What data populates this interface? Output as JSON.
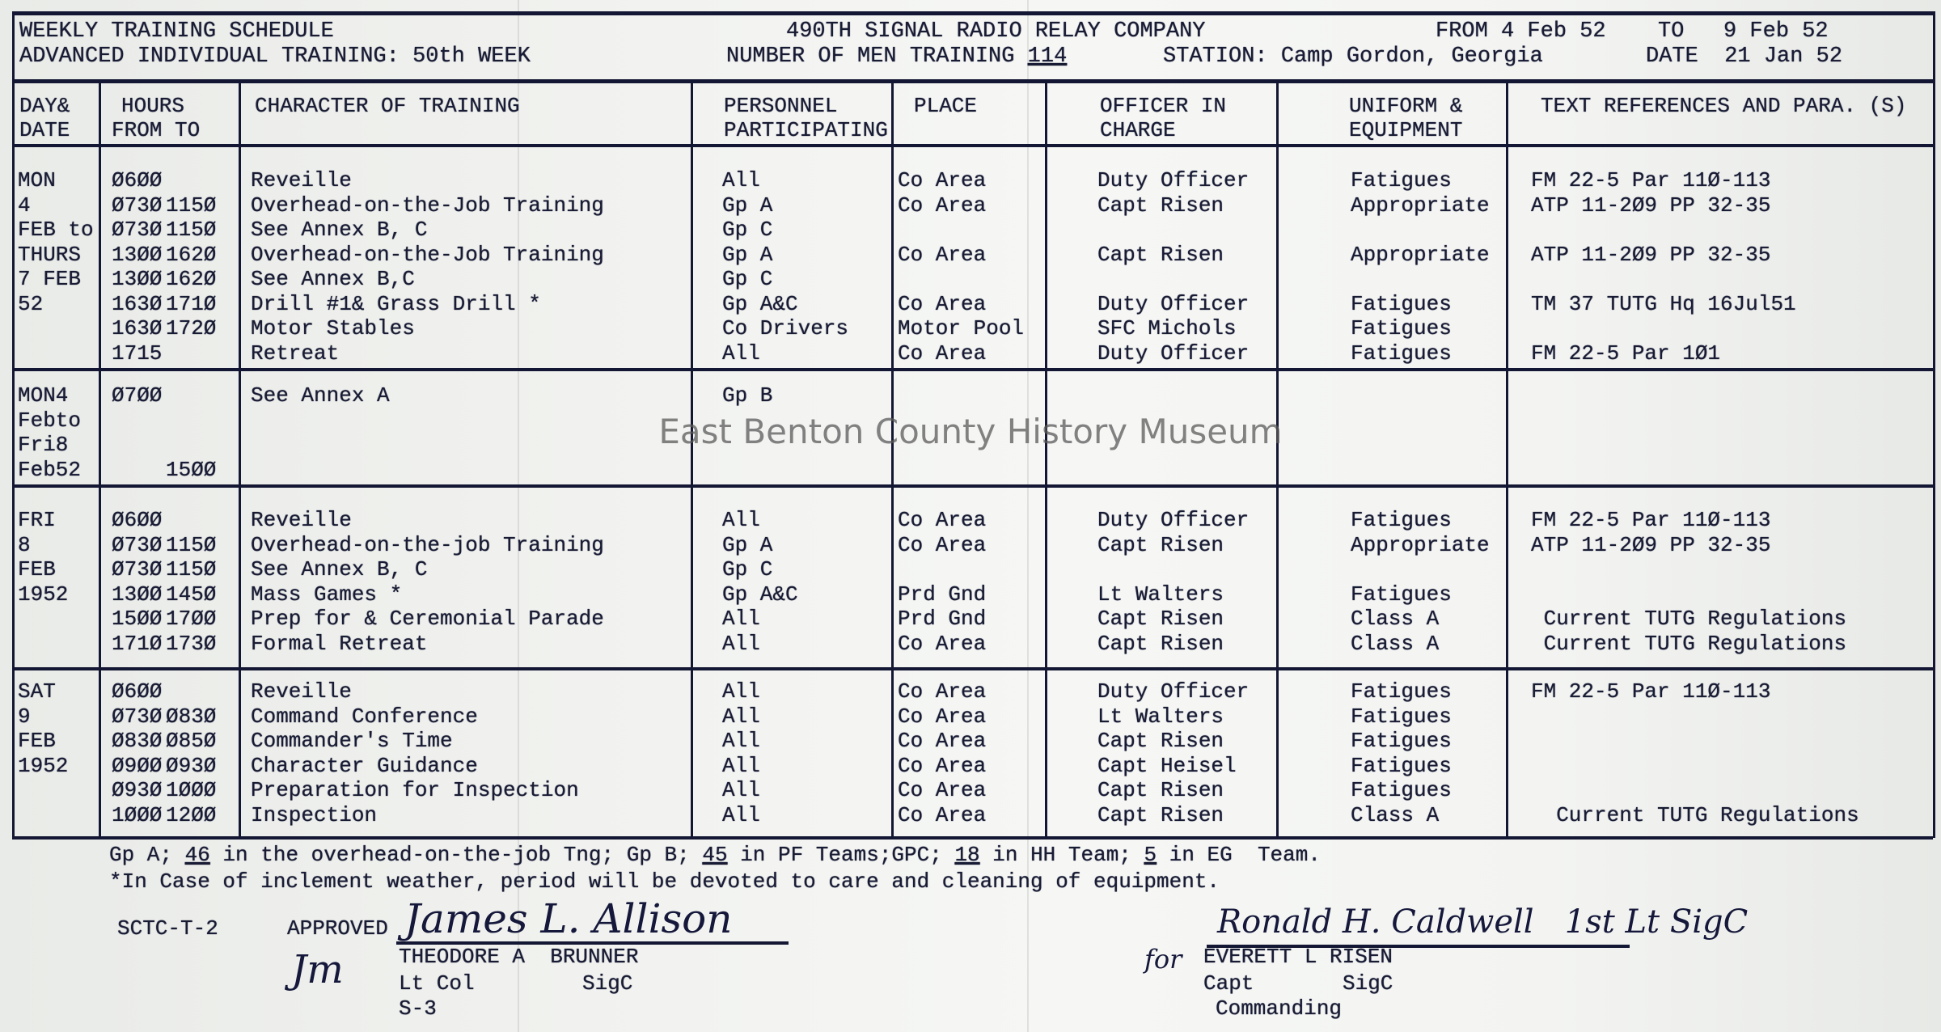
{
  "header": {
    "title": "WEEKLY TRAINING SCHEDULE",
    "subtitle": "ADVANCED INDIVIDUAL TRAINING: 50th WEEK",
    "unit": "490TH SIGNAL RADIO RELAY COMPANY",
    "men_training_label": "NUMBER OF MEN TRAINING",
    "men_training_value": "114",
    "station": "STATION: Camp Gordon, Georgia",
    "from_label": "FROM",
    "from_value": "4 Feb 52",
    "to_label": "TO",
    "to_value": "9 Feb 52",
    "date_label": "DATE",
    "date_value": "21 Jan 52"
  },
  "columns": {
    "day": [
      "DAY&",
      "DATE"
    ],
    "hours": [
      "HOURS",
      "FROM TO"
    ],
    "character": "CHARACTER OF TRAINING",
    "personnel": [
      "PERSONNEL",
      "PARTICIPATING"
    ],
    "place": "PLACE",
    "officer": [
      "OFFICER IN",
      "CHARGE"
    ],
    "uniform": [
      "UNIFORM &",
      "EQUIPMENT"
    ],
    "reference": "TEXT REFERENCES AND PARA. (S)"
  },
  "sections": [
    {
      "day": [
        "MON",
        "4",
        "FEB to",
        "THURS",
        "7 FEB",
        "52"
      ],
      "rows": [
        {
          "from": "Ø6ØØ",
          "to": "",
          "character": "Reveille",
          "personnel": "All",
          "place": "Co Area",
          "officer": "Duty Officer",
          "uniform": "Fatigues",
          "reference": "FM 22-5 Par 11Ø-113"
        },
        {
          "from": "Ø73Ø",
          "to": "115Ø",
          "character": "Overhead-on-the-Job Training",
          "personnel": "Gp A",
          "place": "Co Area",
          "officer": "Capt Risen",
          "uniform": "Appropriate",
          "reference": "ATP 11-2Ø9 PP 32-35"
        },
        {
          "from": "Ø73Ø",
          "to": "115Ø",
          "character": "See Annex B, C",
          "personnel": "Gp C",
          "place": "",
          "officer": "",
          "uniform": "",
          "reference": ""
        },
        {
          "from": "13ØØ",
          "to": "162Ø",
          "character": "Overhead-on-the-Job Training",
          "personnel": "Gp A",
          "place": "Co Area",
          "officer": "Capt Risen",
          "uniform": "Appropriate",
          "reference": "ATP 11-2Ø9 PP 32-35"
        },
        {
          "from": "13ØØ",
          "to": "162Ø",
          "character": "See Annex B,C",
          "personnel": "Gp C",
          "place": "",
          "officer": "",
          "uniform": "",
          "reference": ""
        },
        {
          "from": "163Ø",
          "to": "171Ø",
          "character": "Drill #1& Grass Drill *",
          "personnel": "Gp A&C",
          "place": "Co Area",
          "officer": "Duty Officer",
          "uniform": "Fatigues",
          "reference": "TM 37 TUTG Hq 16Jul51"
        },
        {
          "from": "163Ø",
          "to": "172Ø",
          "character": "Motor Stables",
          "personnel": "Co Drivers",
          "place": "Motor Pool",
          "officer": "SFC Michols",
          "uniform": "Fatigues",
          "reference": ""
        },
        {
          "from": "1715",
          "to": "",
          "character": "Retreat",
          "personnel": "All",
          "place": "Co Area",
          "officer": "Duty Officer",
          "uniform": "Fatigues",
          "reference": "FM 22-5 Par 1Ø1"
        }
      ]
    },
    {
      "day": [
        "MON4",
        "Febto",
        "Fri8",
        "Feb52"
      ],
      "rows": [
        {
          "from": "Ø7ØØ",
          "to": "",
          "character": "See Annex A",
          "personnel": "Gp B",
          "place": "",
          "officer": "",
          "uniform": "",
          "reference": ""
        },
        {
          "from": "",
          "to": "",
          "character": "",
          "personnel": "",
          "place": "",
          "officer": "",
          "uniform": "",
          "reference": ""
        },
        {
          "from": "",
          "to": "",
          "character": "",
          "personnel": "",
          "place": "",
          "officer": "",
          "uniform": "",
          "reference": ""
        },
        {
          "from": "",
          "to": "15ØØ",
          "character": "",
          "personnel": "",
          "place": "",
          "officer": "",
          "uniform": "",
          "reference": ""
        }
      ]
    },
    {
      "day": [
        "FRI",
        "8",
        "FEB",
        "1952"
      ],
      "rows": [
        {
          "from": "Ø6ØØ",
          "to": "",
          "character": "Reveille",
          "personnel": "All",
          "place": "Co Area",
          "officer": "Duty Officer",
          "uniform": "Fatigues",
          "reference": "FM 22-5 Par 11Ø-113"
        },
        {
          "from": "Ø73Ø",
          "to": "115Ø",
          "character": "Overhead-on-the-job Training",
          "personnel": "Gp A",
          "place": "Co Area",
          "officer": "Capt Risen",
          "uniform": "Appropriate",
          "reference": "ATP 11-2Ø9 PP 32-35"
        },
        {
          "from": "Ø73Ø",
          "to": "115Ø",
          "character": "See Annex B, C",
          "personnel": "Gp C",
          "place": "",
          "officer": "",
          "uniform": "",
          "reference": ""
        },
        {
          "from": "13ØØ",
          "to": "145Ø",
          "character": "Mass Games *",
          "personnel": "Gp A&C",
          "place": "Prd Gnd",
          "officer": "Lt Walters",
          "uniform": "Fatigues",
          "reference": ""
        },
        {
          "from": "15ØØ",
          "to": "17ØØ",
          "character": "Prep for & Ceremonial Parade",
          "personnel": "All",
          "place": "Prd Gnd",
          "officer": "Capt Risen",
          "uniform": "Class A",
          "reference": " Current TUTG Regulations"
        },
        {
          "from": "171Ø",
          "to": "173Ø",
          "character": "Formal Retreat",
          "personnel": "All",
          "place": "Co Area",
          "officer": "Capt Risen",
          "uniform": "Class A",
          "reference": " Current TUTG Regulations"
        }
      ]
    },
    {
      "day": [
        "SAT",
        "9",
        "FEB",
        "1952"
      ],
      "rows": [
        {
          "from": "Ø6ØØ",
          "to": "",
          "character": "Reveille",
          "personnel": "All",
          "place": "Co Area",
          "officer": "Duty Officer",
          "uniform": "Fatigues",
          "reference": "FM 22-5 Par 11Ø-113"
        },
        {
          "from": "Ø73Ø",
          "to": "Ø83Ø",
          "character": "Command Conference",
          "personnel": "All",
          "place": "Co Area",
          "officer": "Lt Walters",
          "uniform": "Fatigues",
          "reference": ""
        },
        {
          "from": "Ø83Ø",
          "to": "Ø85Ø",
          "character": "Commander's Time",
          "personnel": "All",
          "place": "Co Area",
          "officer": "Capt Risen",
          "uniform": "Fatigues",
          "reference": ""
        },
        {
          "from": "Ø9ØØ",
          "to": "Ø93Ø",
          "character": "Character Guidance",
          "personnel": "All",
          "place": "Co Area",
          "officer": "Capt Heisel",
          "uniform": "Fatigues",
          "reference": ""
        },
        {
          "from": "Ø93Ø",
          "to": "1ØØØ",
          "character": "Preparation for Inspection",
          "personnel": "All",
          "place": "Co Area",
          "officer": "Capt Risen",
          "uniform": "Fatigues",
          "reference": ""
        },
        {
          "from": "1ØØØ",
          "to": "12ØØ",
          "character": "Inspection",
          "personnel": "All",
          "place": "Co Area",
          "officer": "Capt Risen",
          "uniform": "Class A",
          "reference": "  Current TUTG Regulations"
        }
      ]
    }
  ],
  "footer": {
    "groups_line": {
      "a": "Gp A;",
      "a_count": "46",
      "a_text": "in the overhead-on-the-job Tng; Gp B;",
      "b_count": "45",
      "b_text": "in PF Teams;GPC;",
      "c_count": "18",
      "c_text": "in HH Team;",
      "d_count": "5",
      "d_text": "in EG  Team."
    },
    "note": "*In Case of inclement weather, period will be devoted to care and cleaning of equipment.",
    "form_number": "SCTC-T-2",
    "approved_label": "APPROVED",
    "approver_signature": "James L. Allison",
    "approver_initials": "Jm",
    "approver_name": "THEODORE A  BRUNNER",
    "approver_rank": "Lt Col",
    "approver_branch": "SigC",
    "approver_office": "S-3",
    "commander_signature": "Ronald H. Caldwell   1st Lt SigC",
    "for_label": "for",
    "commander_name": "EVERETT L RISEN",
    "commander_rank": "Capt",
    "commander_branch": "SigC",
    "commander_title": "Commanding"
  },
  "watermark": "East Benton County History Museum",
  "colors": {
    "ink": "#181b34",
    "paper": "#f1f2ef",
    "watermark": "#5a5a5a"
  }
}
